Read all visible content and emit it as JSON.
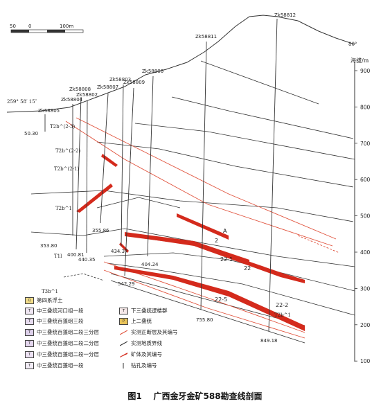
{
  "figure": {
    "caption_label": "图1",
    "caption_text": "广西金牙金矿588勘查线剖面"
  },
  "scale": {
    "labels": [
      "50",
      "0",
      "100m"
    ]
  },
  "bearings": {
    "left": "259° 58′ 15″",
    "right": "80°"
  },
  "axis": {
    "title": "海拔/m",
    "ticks": [
      "900",
      "800",
      "700",
      "600",
      "500",
      "400",
      "300",
      "200",
      "100"
    ]
  },
  "boreholes": [
    {
      "id": "Zk58805",
      "depth": "50.30"
    },
    {
      "id": "Zk58804",
      "depth": "353.80"
    },
    {
      "id": "Zk58808",
      "depth": "400.81"
    },
    {
      "id": "Zk58802",
      "depth": "440.35"
    },
    {
      "id": "Zk58807",
      "depth": "355.86"
    },
    {
      "id": "Zk58803",
      "depth": "434.37"
    },
    {
      "id": "Zk58809",
      "depth": "542.29"
    },
    {
      "id": "Zk58806",
      "depth": "404.24"
    },
    {
      "id": "Zk58811",
      "depth": "755.80"
    },
    {
      "id": "Zk58812",
      "depth": "849.18"
    }
  ],
  "ore_labels": [
    "A",
    "2",
    "22-1",
    "22",
    "22-5",
    "22-2"
  ],
  "strata_labels": [
    "T2b^(2-3)",
    "T2b^(2-2)",
    "T2b^(2-1)",
    "T2b^1",
    "T1l",
    "T3b^1",
    "T2b^1"
  ],
  "legend": [
    {
      "symbol": "Q",
      "label": "第四系浮土"
    },
    {
      "symbol": "T2h",
      "label": "中三叠统河口组一段"
    },
    {
      "symbol": "T2b3",
      "label": "中三叠统百蓬组三段"
    },
    {
      "symbol": "T2b2-3",
      "label": "中三叠统百蓬组二段三分层"
    },
    {
      "symbol": "T2b2-2",
      "label": "中三叠统百蓬组二段二分层"
    },
    {
      "symbol": "T2b2-1",
      "label": "中三叠统百蓬组二段一分层"
    },
    {
      "symbol": "T2b1",
      "label": "中三叠统百蓬组一段"
    },
    {
      "symbol": "T1l",
      "label": "下三叠统逻楼群"
    },
    {
      "symbol": "P3",
      "label": "上二叠统"
    },
    {
      "symbol": "fault",
      "label": "实测正断层及其编号"
    },
    {
      "symbol": "boundary",
      "label": "实测地质界线"
    },
    {
      "symbol": "ore",
      "label": "矿体及其编号"
    },
    {
      "symbol": "hole",
      "label": "钻孔及编号"
    }
  ],
  "colors": {
    "ore": "#d42a1c",
    "fault": "#e0503a",
    "quaternary": "#f2dd8a",
    "permian": "#e8c35a"
  }
}
